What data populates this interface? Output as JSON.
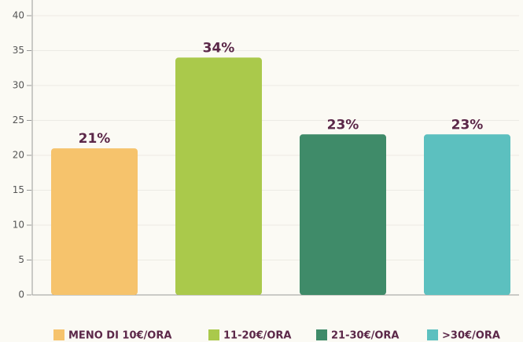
{
  "chart_data": {
    "type": "bar",
    "categories": [
      "MENO DI 10€/ORA",
      "11-20€/ORA",
      "21-30€/ORA",
      ">30€/ORA"
    ],
    "colors": [
      "#f6c36c",
      "#aac94b",
      "#3f8b69",
      "#5cc0bf"
    ],
    "values": [
      21,
      34,
      23,
      23
    ],
    "value_labels": [
      "21%",
      "34%",
      "23%",
      "23%"
    ],
    "ylim": [
      0,
      40
    ],
    "yticks": [
      0,
      5,
      10,
      15,
      20,
      25,
      30,
      35,
      40
    ],
    "grid": true
  }
}
